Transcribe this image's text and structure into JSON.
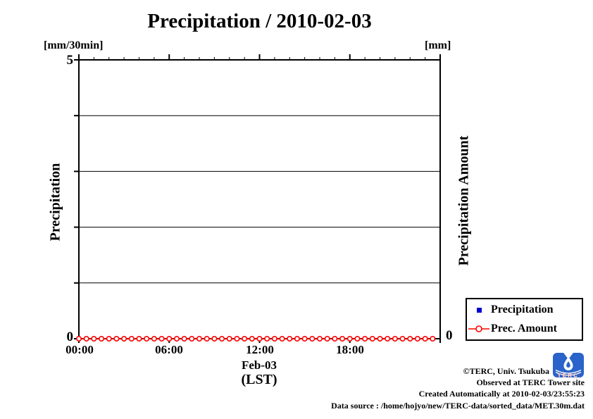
{
  "title": "Precipitation / 2010-02-03",
  "axes": {
    "left_unit": "[mm/30min]",
    "right_unit": "[mm]",
    "left_label": "Precipitation",
    "right_label": "Precipitation Amount",
    "left_top_tick": "5",
    "left_bottom_tick": "0",
    "right_bottom_tick": "0",
    "x_date_label": "Feb-03",
    "x_tz_label": "(LST)"
  },
  "legend": {
    "items": [
      {
        "label": "Precipitation",
        "marker": "blue-square-icon",
        "color": "#0000cd"
      },
      {
        "label": "Prec. Amount",
        "marker": "red-open-circle-icon",
        "color": "#ff0000"
      }
    ]
  },
  "footer": {
    "lines": [
      "©TERC, Univ. Tsukuba",
      "Observed at TERC Tower site",
      "Created Automatically at 2010-02-03/23:55:23",
      "Data source : /home/hojyo/new/TERC-data/sorted_data/MET.30m.dat"
    ],
    "logo_text": "TERC",
    "logo_color": "#2a63c9"
  },
  "colors": {
    "axis": "#000000",
    "precipitation_series": "#0000cd",
    "prec_amount_series": "#ff0000"
  },
  "chart_data": {
    "type": "line",
    "title": "Precipitation / 2010-02-03",
    "xlabel": "Feb-03 (LST)",
    "ylabel_left": "Precipitation [mm/30min]",
    "ylabel_right": "Precipitation Amount [mm]",
    "ylim": [
      0,
      5
    ],
    "y_gridlines": [
      1,
      2,
      3,
      4
    ],
    "x_hours": 24,
    "x_major_tick_labels": [
      "00:00",
      "06:00",
      "12:00",
      "18:00"
    ],
    "x": [
      "00:00",
      "00:30",
      "01:00",
      "01:30",
      "02:00",
      "02:30",
      "03:00",
      "03:30",
      "04:00",
      "04:30",
      "05:00",
      "05:30",
      "06:00",
      "06:30",
      "07:00",
      "07:30",
      "08:00",
      "08:30",
      "09:00",
      "09:30",
      "10:00",
      "10:30",
      "11:00",
      "11:30",
      "12:00",
      "12:30",
      "13:00",
      "13:30",
      "14:00",
      "14:30",
      "15:00",
      "15:30",
      "16:00",
      "16:30",
      "17:00",
      "17:30",
      "18:00",
      "18:30",
      "19:00",
      "19:30",
      "20:00",
      "20:30",
      "21:00",
      "21:30",
      "22:00",
      "22:30",
      "23:00",
      "23:30"
    ],
    "series": [
      {
        "name": "Precipitation",
        "marker": "square",
        "color": "#0000cd",
        "values": [
          0,
          0,
          0,
          0,
          0,
          0,
          0,
          0,
          0,
          0,
          0,
          0,
          0,
          0,
          0,
          0,
          0,
          0,
          0,
          0,
          0,
          0,
          0,
          0,
          0,
          0,
          0,
          0,
          0,
          0,
          0,
          0,
          0,
          0,
          0,
          0,
          0,
          0,
          0,
          0,
          0,
          0,
          0,
          0,
          0,
          0,
          0,
          0
        ]
      },
      {
        "name": "Prec. Amount",
        "marker": "circle-open",
        "color": "#ff0000",
        "values": [
          0,
          0,
          0,
          0,
          0,
          0,
          0,
          0,
          0,
          0,
          0,
          0,
          0,
          0,
          0,
          0,
          0,
          0,
          0,
          0,
          0,
          0,
          0,
          0,
          0,
          0,
          0,
          0,
          0,
          0,
          0,
          0,
          0,
          0,
          0,
          0,
          0,
          0,
          0,
          0,
          0,
          0,
          0,
          0,
          0,
          0,
          0,
          0
        ]
      }
    ],
    "legend_position": "outside-bottom-right",
    "grid": true
  }
}
